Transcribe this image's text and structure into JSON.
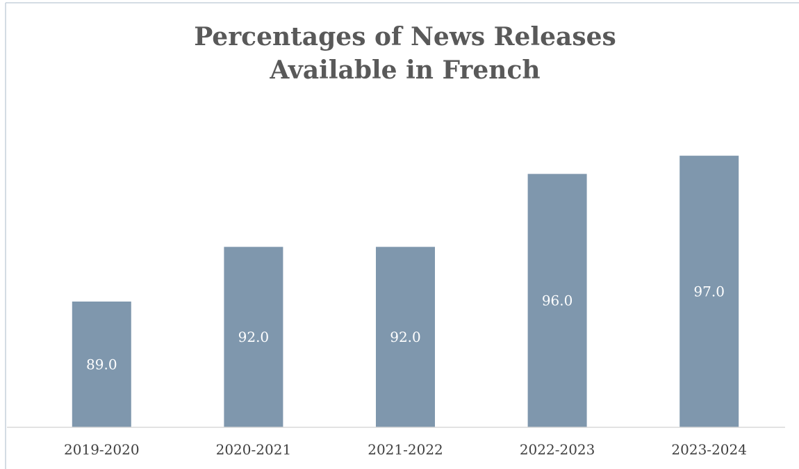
{
  "chart_data": {
    "type": "bar",
    "title": "Percentages of News Releases Available in French",
    "title_lines": [
      "Percentages of News Releases",
      "Available in French"
    ],
    "categories": [
      "2019-2020",
      "2020-2021",
      "2021-2022",
      "2022-2023",
      "2023-2024"
    ],
    "values": [
      89.0,
      92.0,
      92.0,
      96.0,
      97.0
    ],
    "data_labels": [
      "89.0",
      "92.0",
      "92.0",
      "96.0",
      "97.0"
    ],
    "xlabel": "",
    "ylabel": "",
    "ylim": [
      82.1,
      98.3
    ],
    "grid": false,
    "legend": "none",
    "bar_color": "#7f97ad",
    "label_color": "#ffffff",
    "title_color": "#595959",
    "axis_color": "#d9d9d9",
    "border_color": "#c5d0dc"
  }
}
